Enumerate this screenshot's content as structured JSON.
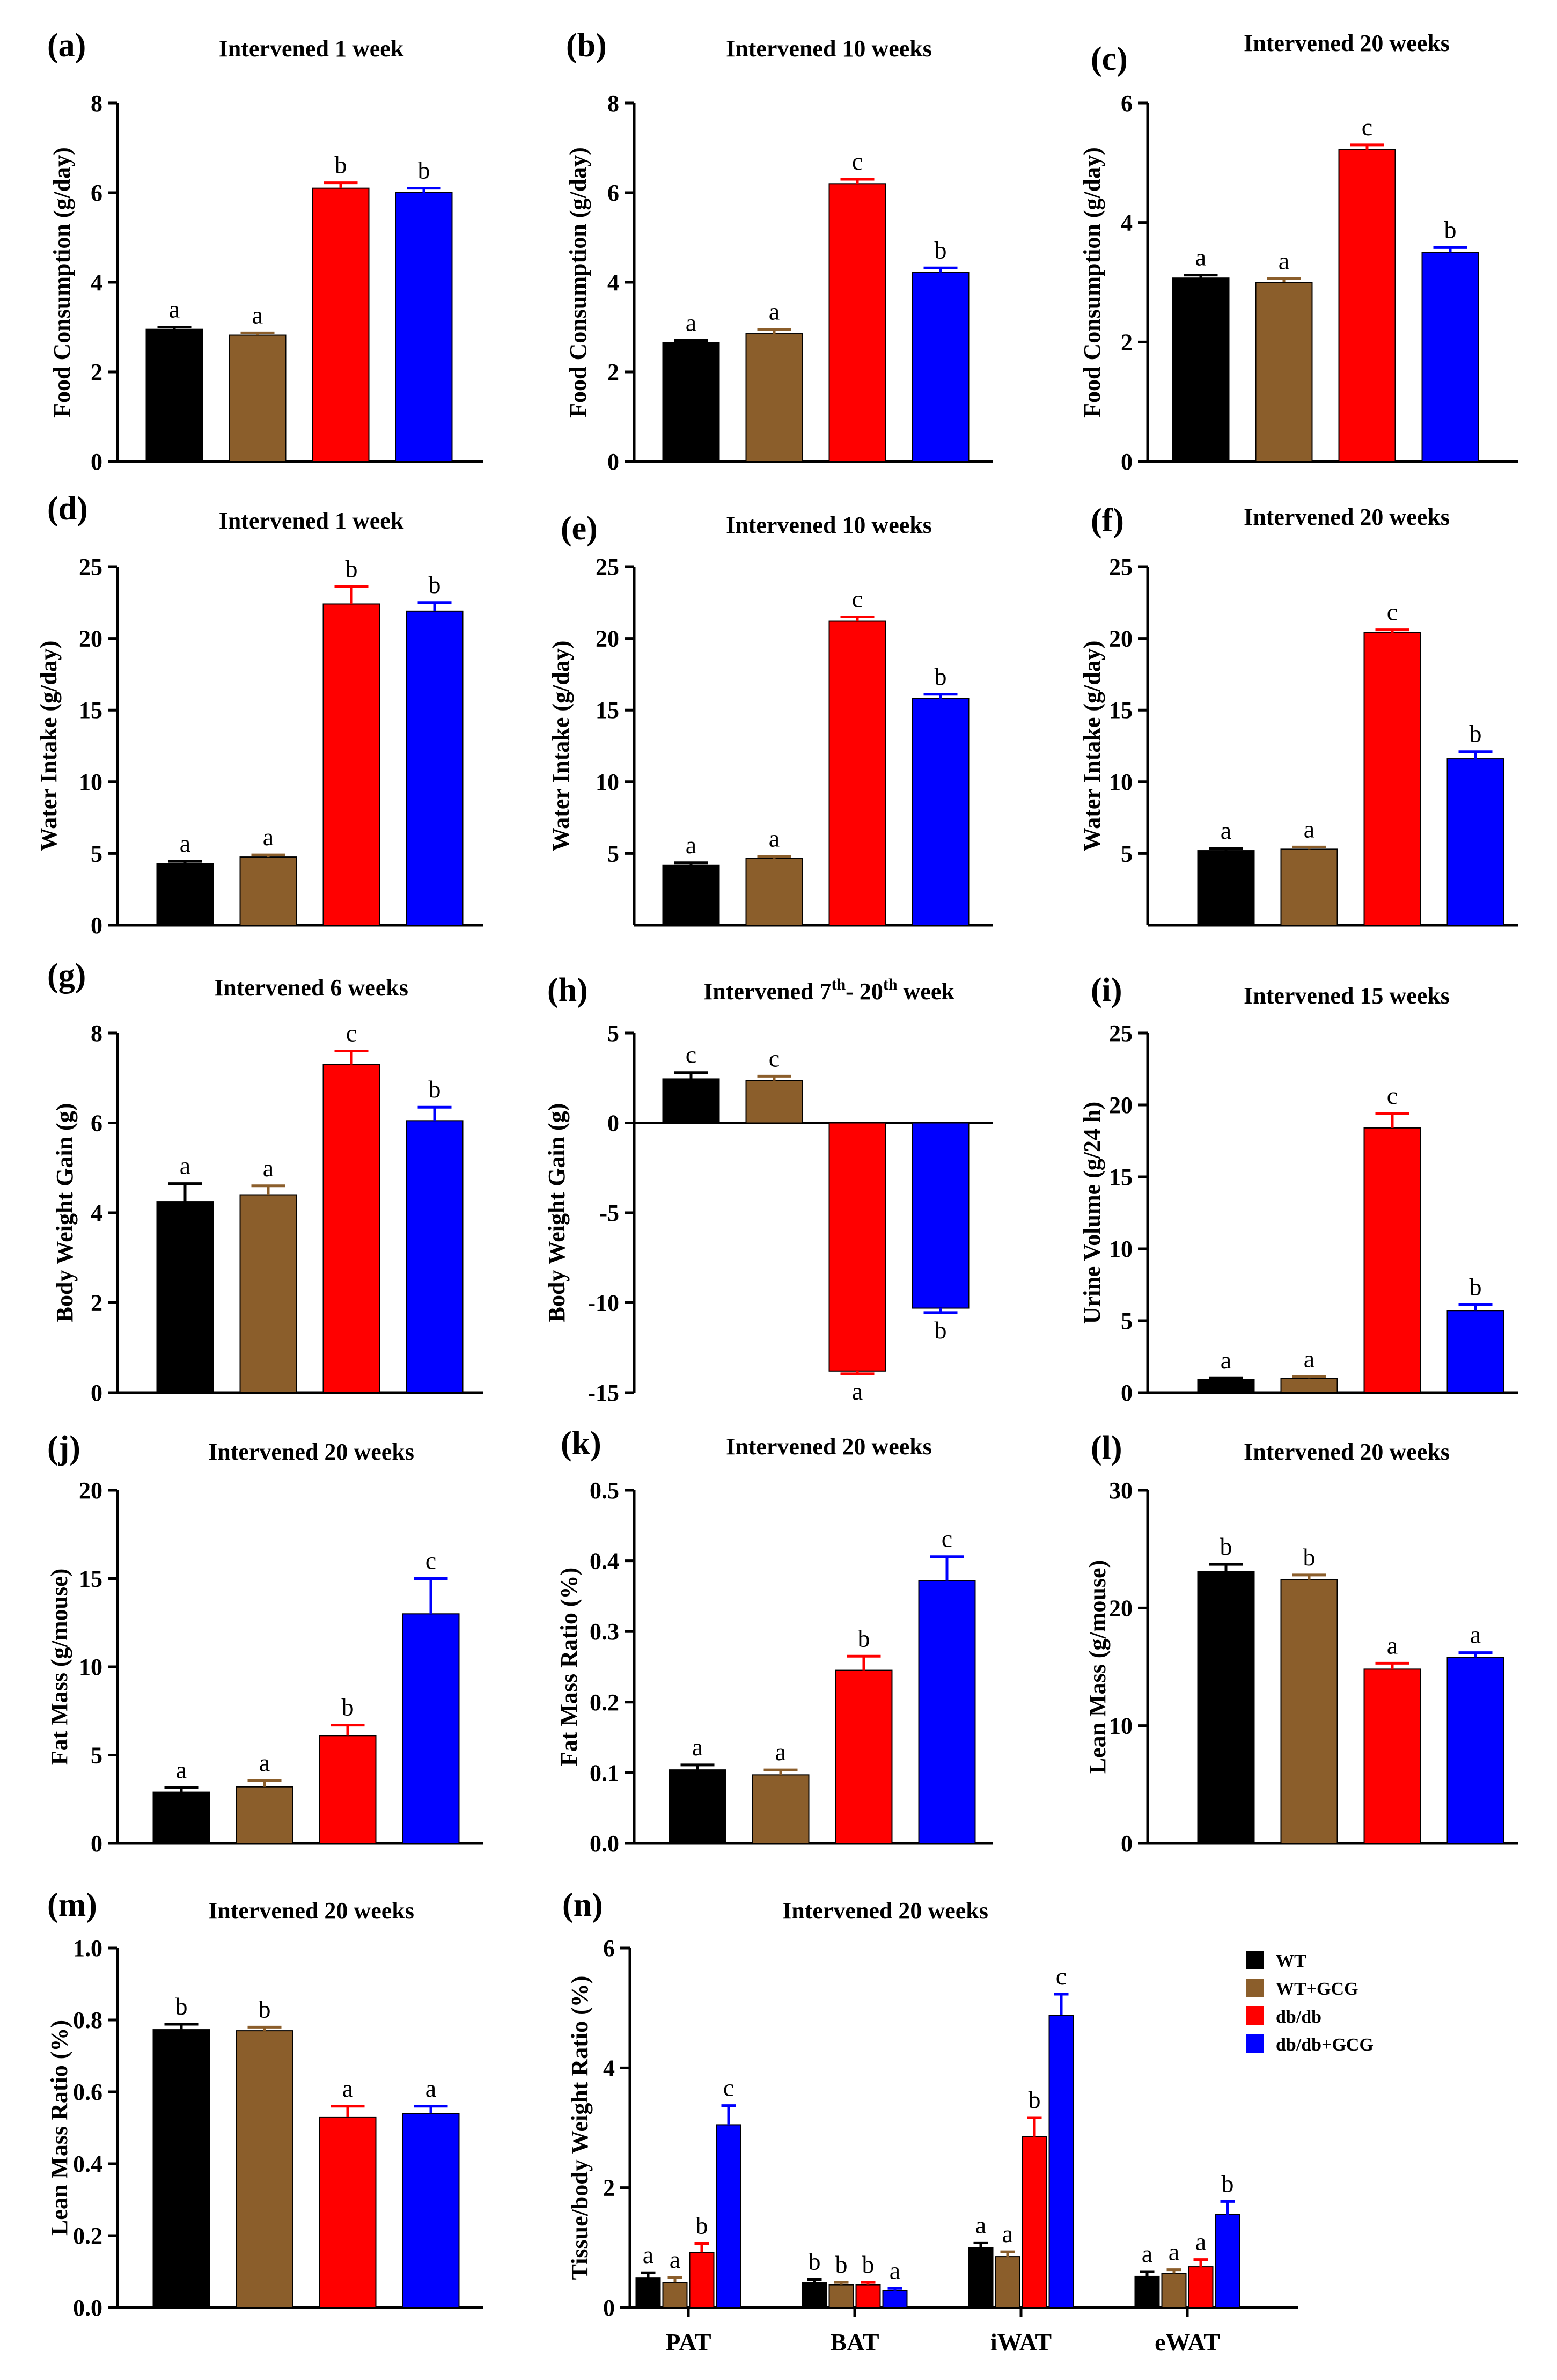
{
  "colors": {
    "WT": "#000000",
    "WT+GCG": "#8B5E2B",
    "db/db": "#FF0000",
    "db/db+GCG": "#0000FF"
  },
  "legend": {
    "entries": [
      "WT",
      "WT+GCG",
      "db/db",
      "db/db+GCG"
    ]
  },
  "chart_data": [
    {
      "id": "a",
      "panel_label": "(a)",
      "type": "bar",
      "title": "Intervened 1 week",
      "ylabel": "Food Consumption (g/day)",
      "ylim": [
        0,
        8
      ],
      "yticks": [
        "0",
        "2",
        "4",
        "6",
        "8"
      ],
      "groups": [
        "WT",
        "WT+GCG",
        "db/db",
        "db/db+GCG"
      ],
      "values": [
        2.95,
        2.82,
        6.1,
        6.0
      ],
      "errors": [
        0.05,
        0.05,
        0.12,
        0.1
      ],
      "sig_labels": [
        "a",
        "a",
        "b",
        "b"
      ]
    },
    {
      "id": "b",
      "panel_label": "(b)",
      "type": "bar",
      "title": "Intervened 10 weeks",
      "ylabel": "Food Consumption (g/day)",
      "ylim": [
        0,
        8
      ],
      "yticks": [
        "0",
        "2",
        "4",
        "6",
        "8"
      ],
      "groups": [
        "WT",
        "WT+GCG",
        "db/db",
        "db/db+GCG"
      ],
      "values": [
        2.65,
        2.85,
        6.2,
        4.22
      ],
      "errors": [
        0.05,
        0.1,
        0.1,
        0.1
      ],
      "sig_labels": [
        "a",
        "a",
        "c",
        "b"
      ]
    },
    {
      "id": "c",
      "panel_label": "(c)",
      "type": "bar",
      "title": "Intervened 20 weeks",
      "ylabel": "Food Consumption (g/day)",
      "ylim": [
        0,
        6
      ],
      "yticks": [
        "0",
        "2",
        "4",
        "6"
      ],
      "groups": [
        "WT",
        "WT+GCG",
        "db/db",
        "db/db+GCG"
      ],
      "values": [
        3.07,
        3.0,
        5.22,
        3.5
      ],
      "errors": [
        0.05,
        0.06,
        0.08,
        0.08
      ],
      "sig_labels": [
        "a",
        "a",
        "c",
        "b"
      ]
    },
    {
      "id": "d",
      "panel_label": "(d)",
      "type": "bar",
      "title": "Intervened 1 week",
      "ylabel": "Water Intake (g/day)",
      "ylim": [
        0,
        25
      ],
      "yticks": [
        "0",
        "5",
        "10",
        "15",
        "20",
        "25"
      ],
      "groups": [
        "WT",
        "WT+GCG",
        "db/db",
        "db/db+GCG"
      ],
      "values": [
        4.3,
        4.75,
        22.4,
        21.9
      ],
      "errors": [
        0.15,
        0.15,
        1.2,
        0.6
      ],
      "sig_labels": [
        "a",
        "a",
        "b",
        "b"
      ]
    },
    {
      "id": "e",
      "panel_label": "(e)",
      "type": "bar",
      "title": "Intervened 10 weeks",
      "ylabel": "Water Intake (g/day)",
      "ylim": [
        0,
        25
      ],
      "yticks": [
        "5",
        "10",
        "15",
        "20",
        "25"
      ],
      "groups": [
        "WT",
        "WT+GCG",
        "db/db",
        "db/db+GCG"
      ],
      "values": [
        4.2,
        4.65,
        21.2,
        15.8
      ],
      "errors": [
        0.15,
        0.15,
        0.3,
        0.3
      ],
      "sig_labels": [
        "a",
        "a",
        "c",
        "b"
      ]
    },
    {
      "id": "f",
      "panel_label": "(f)",
      "type": "bar",
      "title": "Intervened 20 weeks",
      "ylabel": "Water Intake (g/day)",
      "ylim": [
        0,
        25
      ],
      "yticks": [
        "5",
        "10",
        "15",
        "20",
        "25"
      ],
      "groups": [
        "WT",
        "WT+GCG",
        "db/db",
        "db/db+GCG"
      ],
      "values": [
        5.2,
        5.3,
        20.4,
        11.6
      ],
      "errors": [
        0.15,
        0.15,
        0.2,
        0.5
      ],
      "sig_labels": [
        "a",
        "a",
        "c",
        "b"
      ]
    },
    {
      "id": "g",
      "panel_label": "(g)",
      "type": "bar",
      "title": "Intervened 6 weeks",
      "ylabel": "Body Weight Gain (g)",
      "ylim": [
        0,
        8
      ],
      "yticks": [
        "0",
        "2",
        "4",
        "6",
        "8"
      ],
      "groups": [
        "WT",
        "WT+GCG",
        "db/db",
        "db/db+GCG"
      ],
      "values": [
        4.25,
        4.4,
        7.3,
        6.05
      ],
      "errors": [
        0.4,
        0.2,
        0.3,
        0.3
      ],
      "sig_labels": [
        "a",
        "a",
        "c",
        "b"
      ]
    },
    {
      "id": "h",
      "panel_label": "(h)",
      "type": "bar",
      "title": "Intervened 7th- 20th week",
      "title_parts": {
        "pre": "Intervened 7",
        "sup1": "th",
        "mid": "- 20",
        "sup2": "th",
        "post": " week"
      },
      "ylabel": "Body Weight Gain (g)",
      "ylim": [
        -15,
        5
      ],
      "yticks": [
        "5",
        "0",
        "-5",
        "-10",
        "-15"
      ],
      "groups": [
        "WT",
        "WT+GCG",
        "db/db",
        "db/db+GCG"
      ],
      "values": [
        2.45,
        2.35,
        -13.8,
        -10.3
      ],
      "errors": [
        0.35,
        0.25,
        0.15,
        0.25
      ],
      "sig_labels": [
        "c",
        "c",
        "a",
        "b"
      ]
    },
    {
      "id": "i",
      "panel_label": "(i)",
      "type": "bar",
      "title": "Intervened 15 weeks",
      "ylabel": "Urine Volume (g/24 h)",
      "ylim": [
        0,
        25
      ],
      "yticks": [
        "0",
        "5",
        "10",
        "15",
        "20",
        "25"
      ],
      "groups": [
        "WT",
        "WT+GCG",
        "db/db",
        "db/db+GCG"
      ],
      "values": [
        0.9,
        1.0,
        18.4,
        5.7
      ],
      "errors": [
        0.1,
        0.1,
        1.0,
        0.4
      ],
      "sig_labels": [
        "a",
        "a",
        "c",
        "b"
      ]
    },
    {
      "id": "j",
      "panel_label": "(j)",
      "type": "bar",
      "title": "Intervened 20 weeks",
      "ylabel": "Fat Mass (g/mouse)",
      "ylim": [
        0,
        20
      ],
      "yticks": [
        "0",
        "5",
        "10",
        "15",
        "20"
      ],
      "groups": [
        "WT",
        "WT+GCG",
        "db/db",
        "db/db+GCG"
      ],
      "values": [
        2.9,
        3.2,
        6.1,
        13.0
      ],
      "errors": [
        0.25,
        0.35,
        0.6,
        2.0
      ],
      "sig_labels": [
        "a",
        "a",
        "b",
        "c"
      ]
    },
    {
      "id": "k",
      "panel_label": "(k)",
      "type": "bar",
      "title": "Intervened 20 weeks",
      "ylabel": "Fat Mass Ratio (%)",
      "ylim": [
        0,
        0.5
      ],
      "yticks": [
        "0.0",
        "0.1",
        "0.2",
        "0.3",
        "0.4",
        "0.5"
      ],
      "groups": [
        "WT",
        "WT+GCG",
        "db/db",
        "db/db+GCG"
      ],
      "values": [
        0.104,
        0.097,
        0.245,
        0.372
      ],
      "errors": [
        0.007,
        0.007,
        0.02,
        0.034
      ],
      "sig_labels": [
        "a",
        "a",
        "b",
        "c"
      ]
    },
    {
      "id": "l",
      "panel_label": "(l)",
      "type": "bar",
      "title": "Intervened 20 weeks",
      "ylabel": "Lean Mass (g/mouse)",
      "ylim": [
        0,
        30
      ],
      "yticks": [
        "0",
        "10",
        "20",
        "30"
      ],
      "groups": [
        "WT",
        "WT+GCG",
        "db/db",
        "db/db+GCG"
      ],
      "values": [
        23.1,
        22.4,
        14.8,
        15.8
      ],
      "errors": [
        0.6,
        0.4,
        0.5,
        0.4
      ],
      "sig_labels": [
        "b",
        "b",
        "a",
        "a"
      ]
    },
    {
      "id": "m",
      "panel_label": "(m)",
      "type": "bar",
      "title": "Intervened 20 weeks",
      "ylabel": "Lean Mass Ratio (%)",
      "ylim": [
        0,
        1.0
      ],
      "yticks": [
        "0.0",
        "0.2",
        "0.4",
        "0.6",
        "0.8",
        "1.0"
      ],
      "groups": [
        "WT",
        "WT+GCG",
        "db/db",
        "db/db+GCG"
      ],
      "values": [
        0.773,
        0.77,
        0.53,
        0.54
      ],
      "errors": [
        0.015,
        0.01,
        0.03,
        0.02
      ],
      "sig_labels": [
        "b",
        "b",
        "a",
        "a"
      ]
    },
    {
      "id": "n",
      "panel_label": "(n)",
      "type": "bar",
      "title": "Intervened 20 weeks",
      "ylabel": "Tissue/body Weight Ratio (%)",
      "ylim": [
        0,
        6
      ],
      "yticks": [
        "0",
        "2",
        "4",
        "6"
      ],
      "categories": [
        "PAT",
        "BAT",
        "iWAT",
        "eWAT"
      ],
      "series": [
        {
          "name": "WT",
          "values": [
            0.5,
            0.42,
            1.0,
            0.52
          ],
          "errors": [
            0.08,
            0.05,
            0.08,
            0.08
          ],
          "sig_labels": [
            "a",
            "b",
            "a",
            "a"
          ]
        },
        {
          "name": "WT+GCG",
          "values": [
            0.42,
            0.38,
            0.85,
            0.57
          ],
          "errors": [
            0.08,
            0.04,
            0.08,
            0.06
          ],
          "sig_labels": [
            "a",
            "b",
            "a",
            "a"
          ]
        },
        {
          "name": "db/db",
          "values": [
            0.92,
            0.38,
            2.85,
            0.68
          ],
          "errors": [
            0.15,
            0.04,
            0.32,
            0.12
          ],
          "sig_labels": [
            "b",
            "b",
            "b",
            "a"
          ]
        },
        {
          "name": "db/db+GCG",
          "values": [
            3.05,
            0.28,
            4.88,
            1.55
          ],
          "errors": [
            0.32,
            0.04,
            0.35,
            0.22
          ],
          "sig_labels": [
            "c",
            "a",
            "c",
            "b"
          ]
        }
      ],
      "legend_position": "top-right"
    }
  ]
}
